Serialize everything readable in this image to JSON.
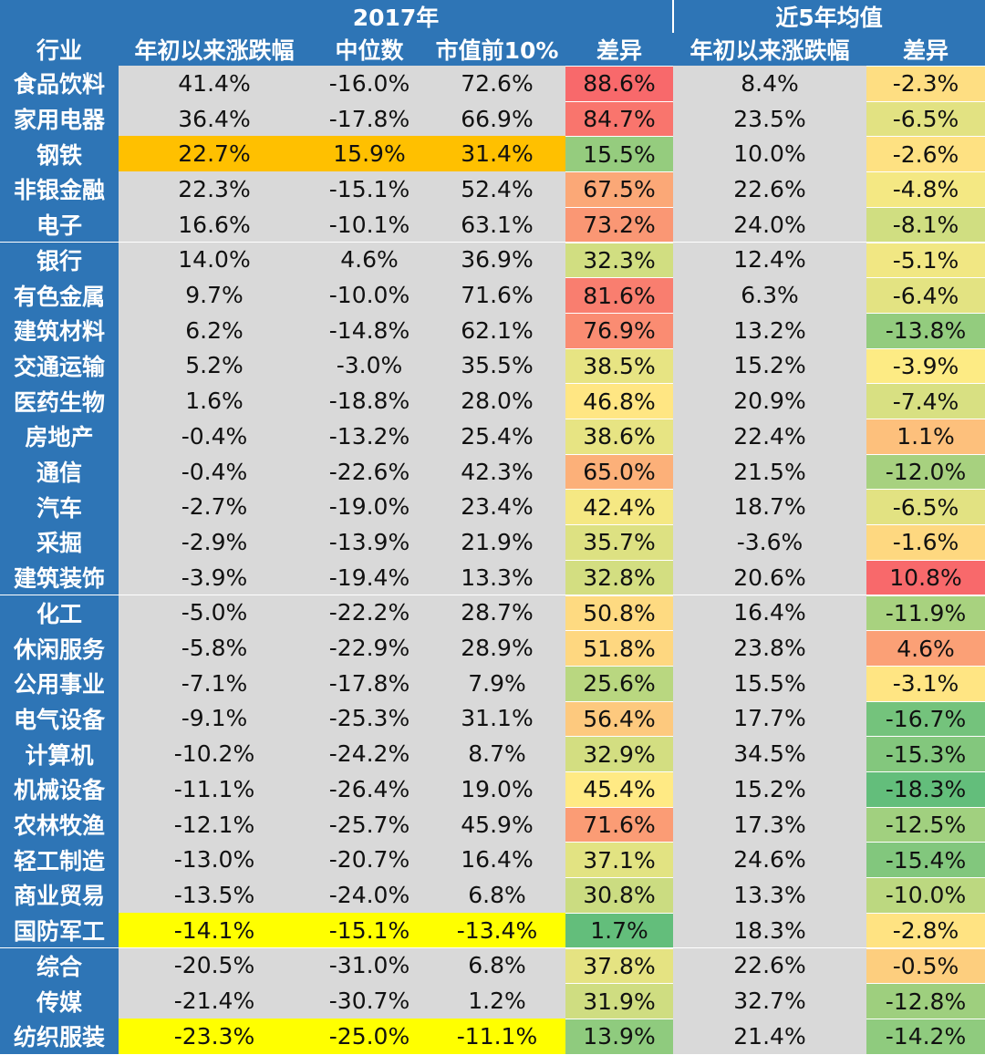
{
  "header": {
    "group_2017": "2017年",
    "group_5yr": "近5年均值",
    "columns": [
      "行业",
      "年初以来涨跌幅",
      "中位数",
      "市值前10%",
      "差异",
      "年初以来涨跌幅",
      "差异"
    ]
  },
  "rows": [
    {
      "industry": "食品饮料",
      "ytd": "41.4%",
      "median": "-16.0%",
      "top10": "72.6%",
      "diff": "88.6%",
      "avg5_ytd": "8.4%",
      "avg5_diff": "-2.3%"
    },
    {
      "industry": "家用电器",
      "ytd": "36.4%",
      "median": "-17.8%",
      "top10": "66.9%",
      "diff": "84.7%",
      "avg5_ytd": "23.5%",
      "avg5_diff": "-6.5%"
    },
    {
      "industry": "钢铁",
      "ytd": "22.7%",
      "median": "15.9%",
      "top10": "31.4%",
      "diff": "15.5%",
      "avg5_ytd": "10.0%",
      "avg5_diff": "-2.6%",
      "highlight": "#ffc000"
    },
    {
      "industry": "非银金融",
      "ytd": "22.3%",
      "median": "-15.1%",
      "top10": "52.4%",
      "diff": "67.5%",
      "avg5_ytd": "22.6%",
      "avg5_diff": "-4.8%"
    },
    {
      "industry": "电子",
      "ytd": "16.6%",
      "median": "-10.1%",
      "top10": "63.1%",
      "diff": "73.2%",
      "avg5_ytd": "24.0%",
      "avg5_diff": "-8.1%"
    },
    {
      "industry": "银行",
      "ytd": "14.0%",
      "median": "4.6%",
      "top10": "36.9%",
      "diff": "32.3%",
      "avg5_ytd": "12.4%",
      "avg5_diff": "-5.1%"
    },
    {
      "industry": "有色金属",
      "ytd": "9.7%",
      "median": "-10.0%",
      "top10": "71.6%",
      "diff": "81.6%",
      "avg5_ytd": "6.3%",
      "avg5_diff": "-6.4%"
    },
    {
      "industry": "建筑材料",
      "ytd": "6.2%",
      "median": "-14.8%",
      "top10": "62.1%",
      "diff": "76.9%",
      "avg5_ytd": "13.2%",
      "avg5_diff": "-13.8%"
    },
    {
      "industry": "交通运输",
      "ytd": "5.2%",
      "median": "-3.0%",
      "top10": "35.5%",
      "diff": "38.5%",
      "avg5_ytd": "15.2%",
      "avg5_diff": "-3.9%"
    },
    {
      "industry": "医药生物",
      "ytd": "1.6%",
      "median": "-18.8%",
      "top10": "28.0%",
      "diff": "46.8%",
      "avg5_ytd": "20.9%",
      "avg5_diff": "-7.4%"
    },
    {
      "industry": "房地产",
      "ytd": "-0.4%",
      "median": "-13.2%",
      "top10": "25.4%",
      "diff": "38.6%",
      "avg5_ytd": "22.4%",
      "avg5_diff": "1.1%"
    },
    {
      "industry": "通信",
      "ytd": "-0.4%",
      "median": "-22.6%",
      "top10": "42.3%",
      "diff": "65.0%",
      "avg5_ytd": "21.5%",
      "avg5_diff": "-12.0%"
    },
    {
      "industry": "汽车",
      "ytd": "-2.7%",
      "median": "-19.0%",
      "top10": "23.4%",
      "diff": "42.4%",
      "avg5_ytd": "18.7%",
      "avg5_diff": "-6.5%"
    },
    {
      "industry": "采掘",
      "ytd": "-2.9%",
      "median": "-13.9%",
      "top10": "21.9%",
      "diff": "35.7%",
      "avg5_ytd": "-3.6%",
      "avg5_diff": "-1.6%"
    },
    {
      "industry": "建筑装饰",
      "ytd": "-3.9%",
      "median": "-19.4%",
      "top10": "13.3%",
      "diff": "32.8%",
      "avg5_ytd": "20.6%",
      "avg5_diff": "10.8%"
    },
    {
      "industry": "化工",
      "ytd": "-5.0%",
      "median": "-22.2%",
      "top10": "28.7%",
      "diff": "50.8%",
      "avg5_ytd": "16.4%",
      "avg5_diff": "-11.9%"
    },
    {
      "industry": "休闲服务",
      "ytd": "-5.8%",
      "median": "-22.9%",
      "top10": "28.9%",
      "diff": "51.8%",
      "avg5_ytd": "23.8%",
      "avg5_diff": "4.6%"
    },
    {
      "industry": "公用事业",
      "ytd": "-7.1%",
      "median": "-17.8%",
      "top10": "7.9%",
      "diff": "25.6%",
      "avg5_ytd": "15.5%",
      "avg5_diff": "-3.1%"
    },
    {
      "industry": "电气设备",
      "ytd": "-9.1%",
      "median": "-25.3%",
      "top10": "31.1%",
      "diff": "56.4%",
      "avg5_ytd": "17.7%",
      "avg5_diff": "-16.7%"
    },
    {
      "industry": "计算机",
      "ytd": "-10.2%",
      "median": "-24.2%",
      "top10": "8.7%",
      "diff": "32.9%",
      "avg5_ytd": "34.5%",
      "avg5_diff": "-15.3%"
    },
    {
      "industry": "机械设备",
      "ytd": "-11.1%",
      "median": "-26.4%",
      "top10": "19.0%",
      "diff": "45.4%",
      "avg5_ytd": "15.2%",
      "avg5_diff": "-18.3%"
    },
    {
      "industry": "农林牧渔",
      "ytd": "-12.1%",
      "median": "-25.7%",
      "top10": "45.9%",
      "diff": "71.6%",
      "avg5_ytd": "17.3%",
      "avg5_diff": "-12.5%"
    },
    {
      "industry": "轻工制造",
      "ytd": "-13.0%",
      "median": "-20.7%",
      "top10": "16.4%",
      "diff": "37.1%",
      "avg5_ytd": "24.6%",
      "avg5_diff": "-15.4%"
    },
    {
      "industry": "商业贸易",
      "ytd": "-13.5%",
      "median": "-24.0%",
      "top10": "6.8%",
      "diff": "30.8%",
      "avg5_ytd": "13.3%",
      "avg5_diff": "-10.0%"
    },
    {
      "industry": "国防军工",
      "ytd": "-14.1%",
      "median": "-15.1%",
      "top10": "-13.4%",
      "diff": "1.7%",
      "avg5_ytd": "18.3%",
      "avg5_diff": "-2.8%",
      "highlight": "#ffff00"
    },
    {
      "industry": "综合",
      "ytd": "-20.5%",
      "median": "-31.0%",
      "top10": "6.8%",
      "diff": "37.8%",
      "avg5_ytd": "22.6%",
      "avg5_diff": "-0.5%"
    },
    {
      "industry": "传媒",
      "ytd": "-21.4%",
      "median": "-30.7%",
      "top10": "1.2%",
      "diff": "31.9%",
      "avg5_ytd": "32.7%",
      "avg5_diff": "-12.8%"
    },
    {
      "industry": "纺织服装",
      "ytd": "-23.3%",
      "median": "-25.0%",
      "top10": "-11.1%",
      "diff": "13.9%",
      "avg5_ytd": "21.4%",
      "avg5_diff": "-14.2%",
      "highlight": "#ffff00"
    }
  ],
  "colors": {
    "header_bg": "#2e75b6",
    "data_bg": "#d9d9d9",
    "scale_low": "#63be7b",
    "scale_mid": "#ffeb84",
    "scale_high": "#f8696b"
  }
}
